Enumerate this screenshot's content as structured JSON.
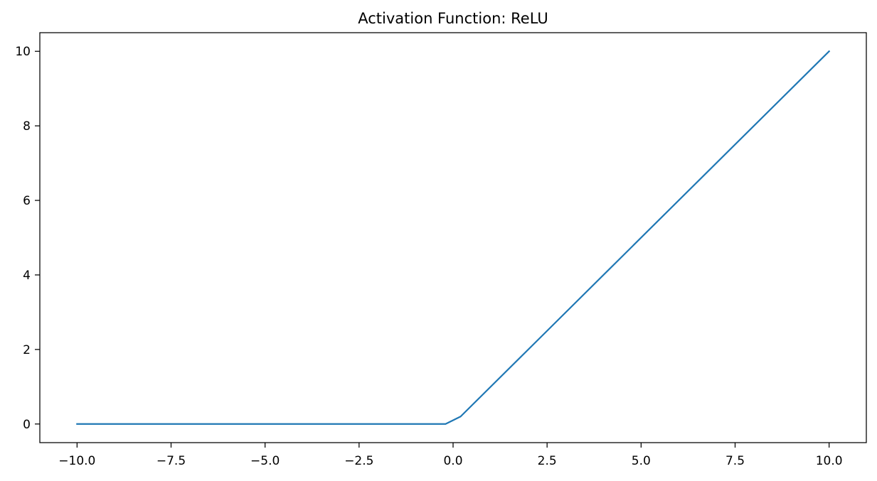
{
  "chart_data": {
    "type": "line",
    "title": "Activation Function: ReLU",
    "xlabel": "",
    "ylabel": "",
    "xlim": [
      -10.99,
      10.99
    ],
    "ylim": [
      -0.5,
      10.5
    ],
    "x_ticks": [
      -10.0,
      -7.5,
      -5.0,
      -2.5,
      0.0,
      2.5,
      5.0,
      7.5,
      10.0
    ],
    "x_tick_labels": [
      "−10.0",
      "−7.5",
      "−5.0",
      "−2.5",
      "0.0",
      "2.5",
      "5.0",
      "7.5",
      "10.0"
    ],
    "y_ticks": [
      0,
      2,
      4,
      6,
      8,
      10
    ],
    "y_tick_labels": [
      "0",
      "2",
      "4",
      "6",
      "8",
      "10"
    ],
    "grid": false,
    "legend": "none",
    "series": [
      {
        "color": "#1f77b4",
        "x": [
          -10.0,
          -0.2,
          0.2,
          10.0
        ],
        "y": [
          0.0,
          0.0,
          0.2,
          10.0
        ]
      }
    ]
  }
}
